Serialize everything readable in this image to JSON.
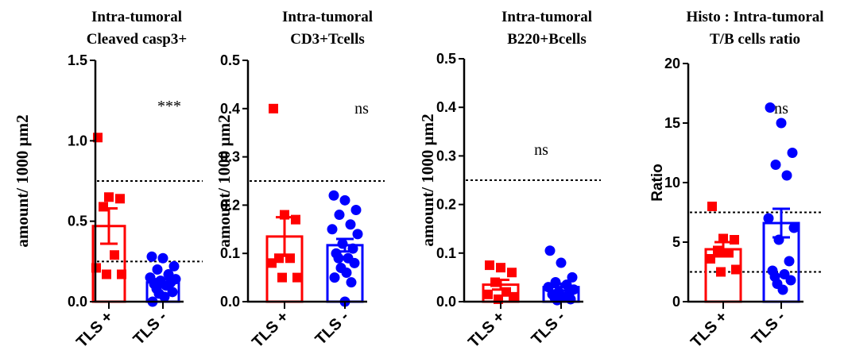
{
  "chart_data": [
    {
      "type": "bar",
      "title_lines": [
        "Intra-tumoral",
        "Cleaved casp3+"
      ],
      "ylabel": "amount/ 1000 µm2",
      "ylim": [
        0,
        1.5
      ],
      "yticks": [
        "0.0",
        "0.5",
        "1.0",
        "1.5"
      ],
      "categories": [
        "TLS +",
        "TLS -"
      ],
      "annotation": "***",
      "reference_lines": [
        0.75,
        0.25
      ],
      "series": [
        {
          "color": "#ff0000",
          "marker": "square",
          "mean": 0.47,
          "sem": 0.11,
          "points": [
            1.02,
            0.65,
            0.64,
            0.59,
            0.29,
            0.21,
            0.17,
            0.17
          ]
        },
        {
          "color": "#0000ff",
          "marker": "circle",
          "mean": 0.12,
          "sem": 0.02,
          "points": [
            0.28,
            0.27,
            0.22,
            0.2,
            0.17,
            0.15,
            0.14,
            0.13,
            0.12,
            0.11,
            0.1,
            0.08,
            0.06,
            0.05,
            0.03,
            0.0
          ]
        }
      ]
    },
    {
      "type": "bar",
      "title_lines": [
        "Intra-tumoral",
        "CD3+Tcells"
      ],
      "ylabel": "amount/ 1000 µm2",
      "ylim": [
        0,
        0.5
      ],
      "yticks": [
        "0.0",
        "0.1",
        "0.2",
        "0.3",
        "0.4",
        "0.5"
      ],
      "categories": [
        "TLS +",
        "TLS -"
      ],
      "annotation": "ns",
      "reference_lines": [
        0.25
      ],
      "series": [
        {
          "color": "#ff0000",
          "marker": "square",
          "mean": 0.135,
          "sem": 0.04,
          "points": [
            0.4,
            0.18,
            0.17,
            0.09,
            0.09,
            0.08,
            0.05,
            0.05
          ]
        },
        {
          "color": "#0000ff",
          "marker": "circle",
          "mean": 0.117,
          "sem": 0.013,
          "points": [
            0.22,
            0.21,
            0.19,
            0.18,
            0.16,
            0.15,
            0.14,
            0.12,
            0.11,
            0.1,
            0.09,
            0.09,
            0.08,
            0.07,
            0.06,
            0.05,
            0.04,
            0.0
          ]
        }
      ]
    },
    {
      "type": "bar",
      "title_lines": [
        "Intra-tumoral",
        "B220+Bcells"
      ],
      "ylabel": "amount/ 1000 µm2",
      "ylim": [
        0,
        0.5
      ],
      "yticks": [
        "0.0",
        "0.1",
        "0.2",
        "0.3",
        "0.4",
        "0.5"
      ],
      "categories": [
        "TLS +",
        "TLS -"
      ],
      "annotation": "ns",
      "reference_lines": [
        0.25
      ],
      "series": [
        {
          "color": "#ff0000",
          "marker": "square",
          "mean": 0.035,
          "sem": 0.01,
          "points": [
            0.075,
            0.07,
            0.06,
            0.04,
            0.02,
            0.015,
            0.01,
            0.005
          ]
        },
        {
          "color": "#0000ff",
          "marker": "circle",
          "mean": 0.03,
          "sem": 0.007,
          "points": [
            0.105,
            0.08,
            0.05,
            0.04,
            0.035,
            0.03,
            0.025,
            0.02,
            0.015,
            0.015,
            0.01,
            0.008,
            0.005,
            0.003
          ]
        }
      ]
    },
    {
      "type": "bar",
      "title_lines": [
        "Histo : Intra-tumoral",
        "T/B cells ratio"
      ],
      "ylabel": "Ratio",
      "ylim": [
        0,
        20
      ],
      "yticks": [
        "0",
        "5",
        "10",
        "15",
        "20"
      ],
      "categories": [
        "TLS +",
        "TLS -"
      ],
      "annotation": "ns",
      "reference_lines": [
        7.5,
        2.5
      ],
      "series": [
        {
          "color": "#ff0000",
          "marker": "square",
          "mean": 4.4,
          "sem": 0.6,
          "points": [
            8.0,
            5.3,
            5.2,
            4.3,
            4.1,
            3.6,
            2.7,
            2.5
          ]
        },
        {
          "color": "#0000ff",
          "marker": "circle",
          "mean": 6.6,
          "sem": 1.2,
          "points": [
            16.3,
            15.0,
            12.5,
            11.5,
            10.6,
            7.0,
            6.2,
            5.2,
            3.4,
            2.6,
            2.3,
            2.1,
            1.8,
            1.5,
            1.0
          ]
        }
      ]
    }
  ]
}
